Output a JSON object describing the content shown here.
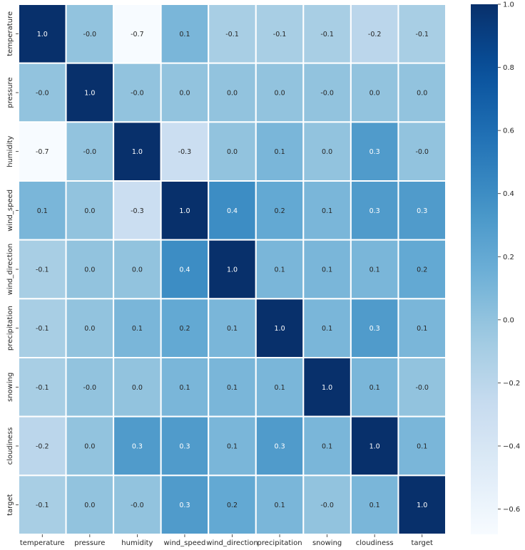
{
  "chart_data": {
    "type": "heatmap",
    "title": "",
    "xlabel": "",
    "ylabel": "",
    "x_labels": [
      "temperature",
      "pressure",
      "humidity",
      "wind_speed",
      "wind_direction",
      "precipitation",
      "snowing",
      "cloudiness",
      "target"
    ],
    "y_labels": [
      "temperature",
      "pressure",
      "humidity",
      "wind_speed",
      "wind_direction",
      "precipitation",
      "snowing",
      "cloudiness",
      "target"
    ],
    "values": [
      [
        1.0,
        -0.0,
        -0.7,
        0.1,
        -0.1,
        -0.1,
        -0.1,
        -0.2,
        -0.1
      ],
      [
        -0.0,
        1.0,
        -0.0,
        0.0,
        0.0,
        0.0,
        -0.0,
        0.0,
        0.0
      ],
      [
        -0.7,
        -0.0,
        1.0,
        -0.3,
        0.0,
        0.1,
        0.0,
        0.3,
        -0.0
      ],
      [
        0.1,
        0.0,
        -0.3,
        1.0,
        0.4,
        0.2,
        0.1,
        0.3,
        0.3
      ],
      [
        -0.1,
        0.0,
        0.0,
        0.4,
        1.0,
        0.1,
        0.1,
        0.1,
        0.2
      ],
      [
        -0.1,
        0.0,
        0.1,
        0.2,
        0.1,
        1.0,
        0.1,
        0.3,
        0.1
      ],
      [
        -0.1,
        -0.0,
        0.0,
        0.1,
        0.1,
        0.1,
        1.0,
        0.1,
        -0.0
      ],
      [
        -0.2,
        0.0,
        0.3,
        0.3,
        0.1,
        0.3,
        0.1,
        1.0,
        0.1
      ],
      [
        -0.1,
        0.0,
        -0.0,
        0.3,
        0.2,
        0.1,
        -0.0,
        0.1,
        1.0
      ]
    ],
    "annotations": [
      [
        "1.0",
        "-0.0",
        "-0.7",
        "0.1",
        "-0.1",
        "-0.1",
        "-0.1",
        "-0.2",
        "-0.1"
      ],
      [
        "-0.0",
        "1.0",
        "-0.0",
        "0.0",
        "0.0",
        "0.0",
        "-0.0",
        "0.0",
        "0.0"
      ],
      [
        "-0.7",
        "-0.0",
        "1.0",
        "-0.3",
        "0.0",
        "0.1",
        "0.0",
        "0.3",
        "-0.0"
      ],
      [
        "0.1",
        "0.0",
        "-0.3",
        "1.0",
        "0.4",
        "0.2",
        "0.1",
        "0.3",
        "0.3"
      ],
      [
        "-0.1",
        "0.0",
        "0.0",
        "0.4",
        "1.0",
        "0.1",
        "0.1",
        "0.1",
        "0.2"
      ],
      [
        "-0.1",
        "0.0",
        "0.1",
        "0.2",
        "0.1",
        "1.0",
        "0.1",
        "0.3",
        "0.1"
      ],
      [
        "-0.1",
        "-0.0",
        "0.0",
        "0.1",
        "0.1",
        "0.1",
        "1.0",
        "0.1",
        "-0.0"
      ],
      [
        "-0.2",
        "0.0",
        "0.3",
        "0.3",
        "0.1",
        "0.3",
        "0.1",
        "1.0",
        "0.1"
      ],
      [
        "-0.1",
        "0.0",
        "-0.0",
        "0.3",
        "0.2",
        "0.1",
        "-0.0",
        "0.1",
        "1.0"
      ]
    ],
    "vmin": -0.68,
    "vmax": 1.0,
    "colormap": "Blues",
    "colorbar_ticks": [
      1.0,
      0.8,
      0.6,
      0.4,
      0.2,
      0.0,
      -0.2,
      -0.4,
      -0.6
    ],
    "colorbar_tick_labels": [
      "1.0",
      "0.8",
      "0.6",
      "0.4",
      "0.2",
      "0.0",
      "−0.2",
      "−0.4",
      "−0.6"
    ],
    "cell_separator_color": "#ffffff",
    "colorbar_position": "right"
  }
}
